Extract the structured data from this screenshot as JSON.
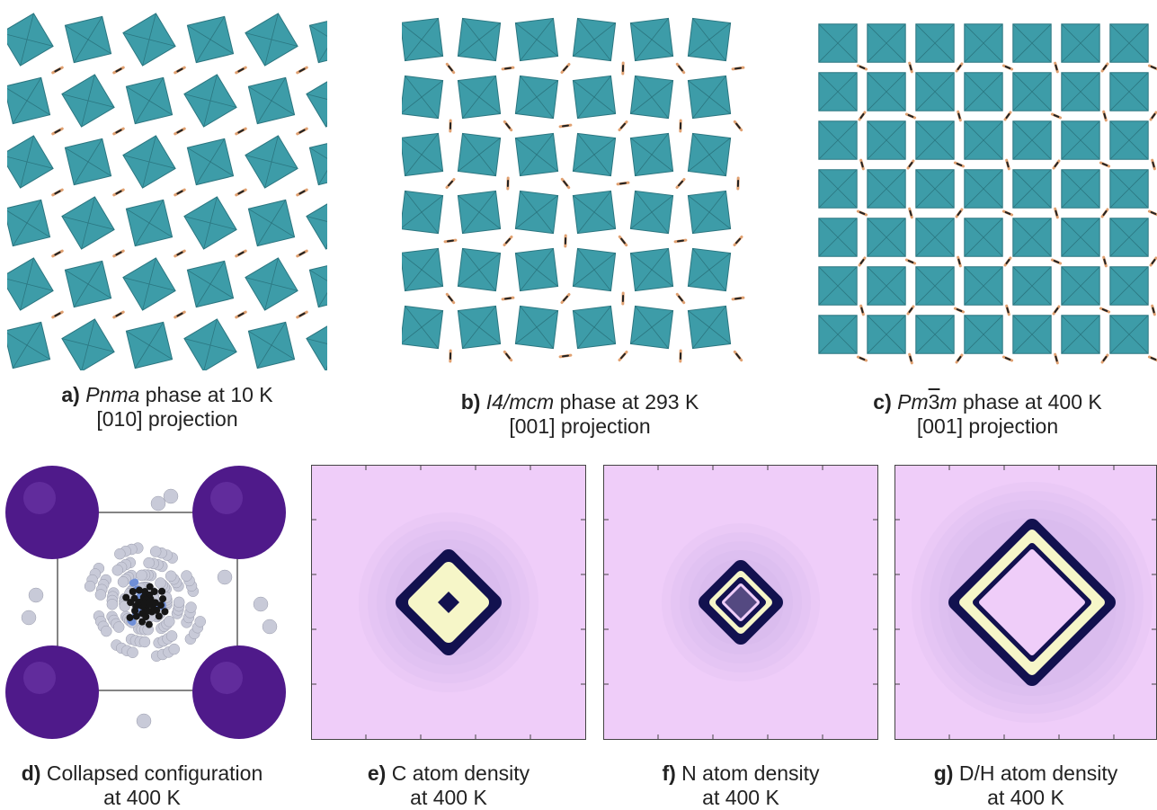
{
  "panels": {
    "a": {
      "letter": "a)",
      "phase": "Pnma",
      "line1_rest": " phase at 10 K",
      "line2": "[010] projection"
    },
    "b": {
      "letter": "b)",
      "phase": "I4/mcm",
      "line1_rest": " phase at 293 K",
      "line2": "[001] projection"
    },
    "c": {
      "letter": "c)",
      "phase_pre": "Pm",
      "phase_bar": "3",
      "phase_post": "m",
      "line1_rest": " phase at 400 K",
      "line2": "[001] projection"
    },
    "d": {
      "letter": "d)",
      "line1_rest": " Collapsed configuration",
      "line2": "at 400 K"
    },
    "e": {
      "letter": "e)",
      "line1_rest": " C atom density",
      "line2": "at 400 K"
    },
    "f": {
      "letter": "f)",
      "line1_rest": " N atom density",
      "line2": "at 400 K"
    },
    "g": {
      "letter": "g)",
      "line1_rest": " D/H atom density",
      "line2": "at 400 K"
    }
  },
  "colors": {
    "octahedron": "#3d9ca8",
    "octahedron_dark": "#2b7680",
    "molecule": "#e0a070",
    "density_bg": "#efcdf9",
    "density_ring": "#12114f",
    "density_core": "#f6f6c8",
    "halide_sphere": "#4f1a8a",
    "hydrogen": "#c8cad8",
    "nitrogen": "#6f8fd8",
    "carbon": "#161616"
  }
}
